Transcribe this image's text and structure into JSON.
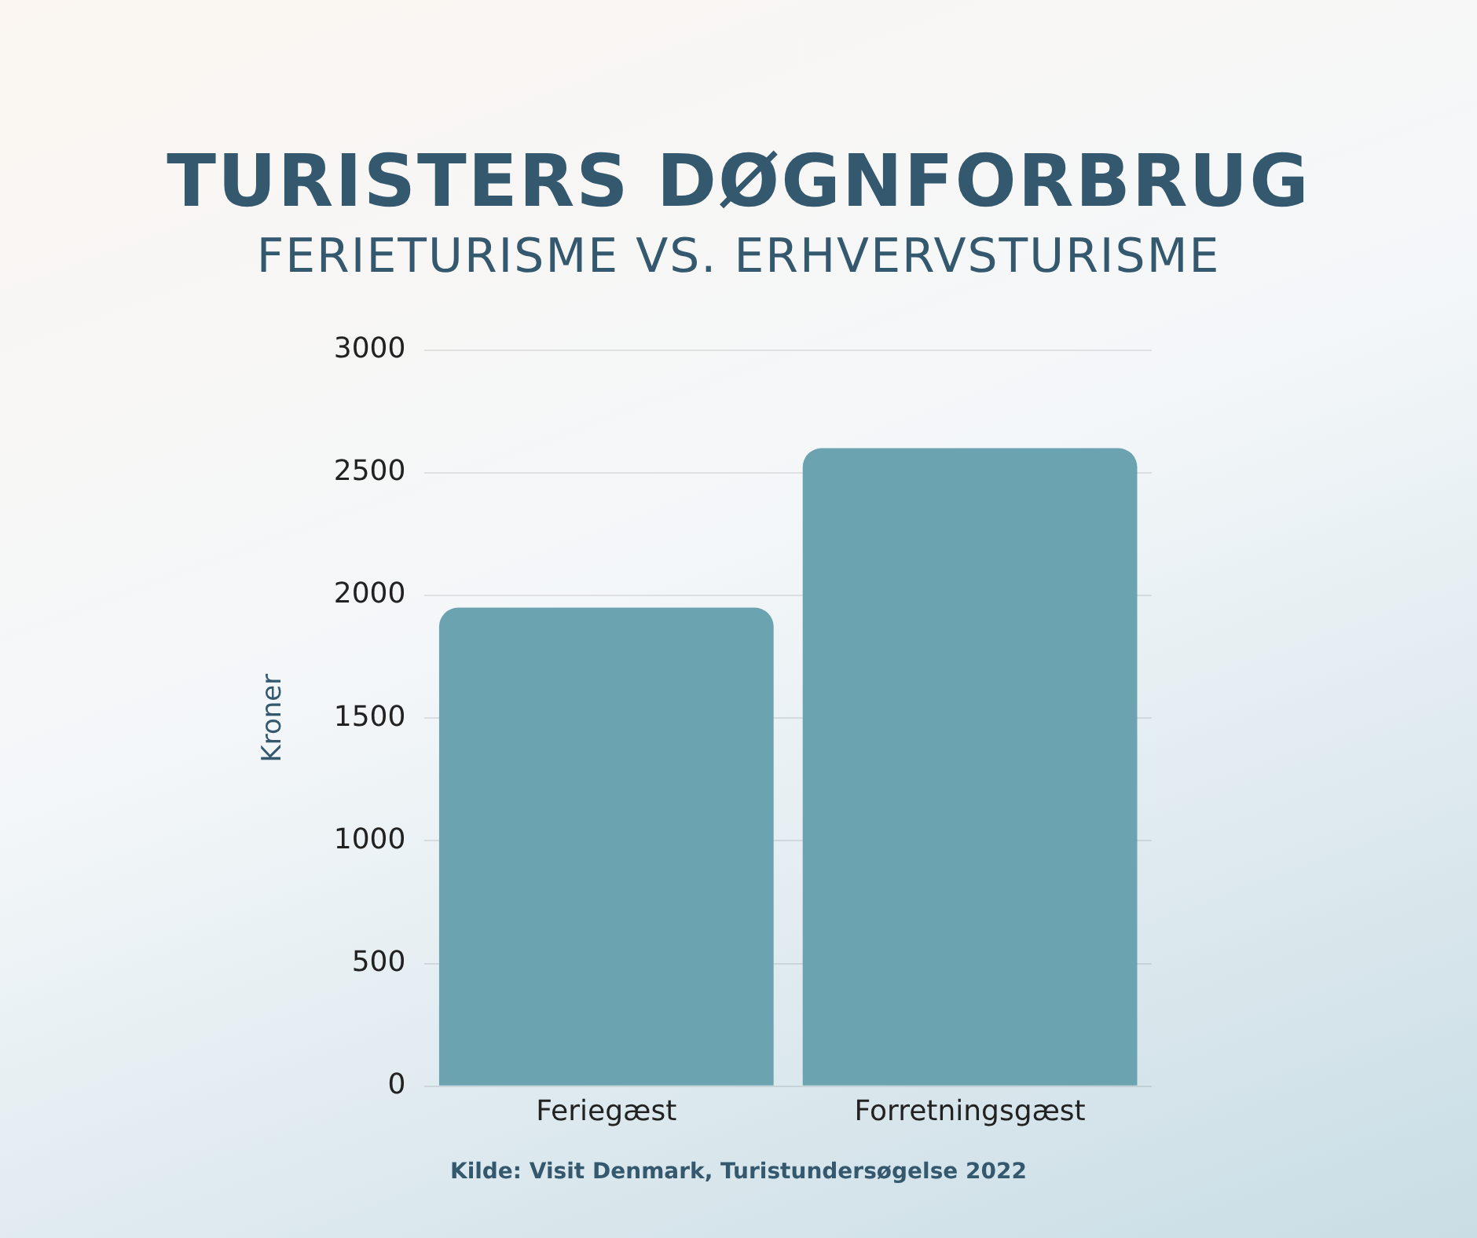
{
  "chart_data": {
    "type": "bar",
    "title": "TURISTERS DØGNFORBRUG",
    "subtitle": "FERIETURISME VS. ERHVERVSTURISME",
    "ylabel": "Kroner",
    "categories": [
      "Feriegæst",
      "Forretningsgæst"
    ],
    "values": [
      1950,
      2600
    ],
    "color": "#6ca3b1",
    "ylim": [
      0,
      3000
    ],
    "yticks": [
      0,
      500,
      1000,
      1500,
      2000,
      2500,
      3000
    ],
    "grid": "y",
    "legend": false,
    "annotations": [
      "Kilde: Visit Denmark, Turistundersøgelse 2022"
    ]
  }
}
